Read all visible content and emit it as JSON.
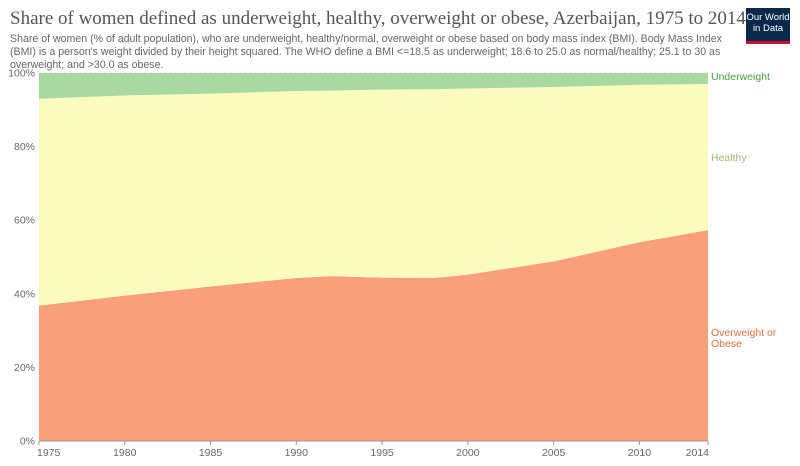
{
  "header": {
    "title": "Share of women defined as underweight, healthy, overweight or obese, Azerbaijan, 1975 to 2014",
    "subtitle": "Share of women (% of adult population), who are underweight, healthy/normal, overweight or obese based on body mass index (BMI). Body Mass Index (BMI) is a person's weight divided by their height squared. The WHO define a BMI <=18.5 as underweight; 18.6 to 25.0 as normal/healthy; 25.1 to 30 as overweight; and >30.0 as obese.",
    "logo_line1": "Our World",
    "logo_line2": "in Data"
  },
  "colors": {
    "overweight": "#f9a07b",
    "healthy": "#fafcbe",
    "underweight": "#a8d9a0",
    "overweight_label": "#e0703e",
    "healthy_label": "#a8b27a",
    "underweight_label": "#4a9a44"
  },
  "chart_data": {
    "type": "area",
    "stacked": true,
    "x": [
      1975,
      1980,
      1985,
      1990,
      1992,
      1995,
      1998,
      2000,
      2005,
      2010,
      2014
    ],
    "series": [
      {
        "name": "Overweight or Obese",
        "values": [
          36.8,
          39.5,
          42.0,
          44.3,
          44.8,
          44.4,
          44.3,
          45.2,
          48.8,
          54.0,
          57.3
        ]
      },
      {
        "name": "Healthy",
        "values": [
          56.2,
          54.4,
          52.4,
          50.8,
          50.4,
          51.1,
          51.3,
          50.6,
          47.4,
          42.8,
          39.7
        ]
      },
      {
        "name": "Underweight",
        "values": [
          7.0,
          6.1,
          5.6,
          4.9,
          4.8,
          4.5,
          4.4,
          4.2,
          3.8,
          3.2,
          3.0
        ]
      }
    ],
    "x_ticks": [
      "1975",
      "1980",
      "1985",
      "1990",
      "1995",
      "2000",
      "2005",
      "2010",
      "2014"
    ],
    "y_ticks": [
      "0%",
      "20%",
      "40%",
      "60%",
      "80%",
      "100%"
    ],
    "ylim": [
      0,
      100
    ],
    "xlim": [
      1975,
      2014
    ],
    "series_labels": {
      "overweight_line1": "Overweight or",
      "overweight_line2": "Obese",
      "healthy": "Healthy",
      "underweight": "Underweight"
    },
    "legend_position": "right (inline labels)"
  }
}
